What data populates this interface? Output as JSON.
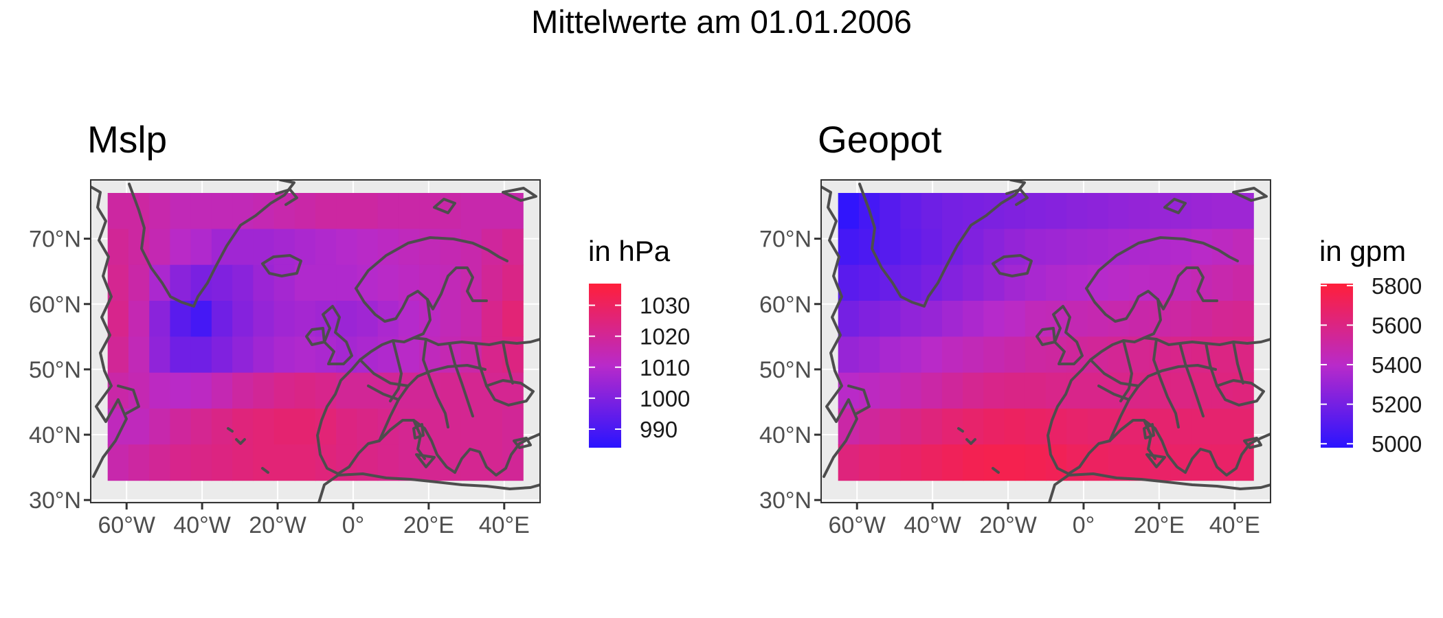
{
  "title": "Mittelwerte am 01.01.2006",
  "colors": {
    "low": "#2a14ff",
    "mid": "#b82aca",
    "high": "#ff1f3a",
    "panel_bg": "#ebebeb",
    "gridline": "#ffffff",
    "coastline": "#4d4d4d",
    "axis_text": "#4d4d4d"
  },
  "panels": [
    {
      "title": "Mslp",
      "legend_title": "in hPa",
      "legend_range": [
        984,
        1037
      ],
      "legend_ticks": [
        1030,
        1020,
        1010,
        1000,
        990
      ],
      "x_ticks": [
        "60°W",
        "40°W",
        "20°W",
        "0°",
        "20°E",
        "40°E"
      ],
      "y_ticks": [
        "70°N",
        "60°N",
        "50°N",
        "40°N",
        "30°N"
      ],
      "grid": {
        "lon_start": -65,
        "lon_step": 5.5,
        "ncols": 20,
        "lat_start": 77,
        "lat_step": 5.5,
        "nrows": 8,
        "values": [
          [
            1018,
            1018,
            1016,
            1014,
            1014,
            1014,
            1014,
            1015,
            1016,
            1017,
            1018,
            1018,
            1018,
            1017,
            1017,
            1017,
            1017,
            1016,
            1016,
            1016
          ],
          [
            1020,
            1018,
            1015,
            1011,
            1009,
            1006,
            1006,
            1006,
            1007,
            1008,
            1009,
            1010,
            1011,
            1012,
            1013,
            1014,
            1015,
            1016,
            1019,
            1021
          ],
          [
            1021,
            1017,
            1008,
            1002,
            999,
            1000,
            1002,
            1005,
            1007,
            1009,
            1009,
            1009,
            1010,
            1011,
            1012,
            1013,
            1014,
            1016,
            1020,
            1023
          ],
          [
            1022,
            1015,
            1002,
            993,
            989,
            997,
            1001,
            1004,
            1006,
            1007,
            1006,
            1005,
            1006,
            1008,
            1010,
            1012,
            1014,
            1016,
            1022,
            1026
          ],
          [
            1020,
            1014,
            1003,
            997,
            997,
            1000,
            1003,
            1006,
            1008,
            1009,
            1008,
            1007,
            1008,
            1009,
            1011,
            1013,
            1015,
            1017,
            1022,
            1024
          ],
          [
            1017,
            1015,
            1012,
            1011,
            1012,
            1015,
            1018,
            1020,
            1022,
            1023,
            1022,
            1020,
            1020,
            1020,
            1020,
            1020,
            1021,
            1021,
            1021,
            1021
          ],
          [
            1013,
            1013,
            1016,
            1019,
            1021,
            1023,
            1025,
            1026,
            1027,
            1027,
            1026,
            1024,
            1023,
            1022,
            1021,
            1021,
            1021,
            1021,
            1021,
            1020
          ],
          [
            1016,
            1018,
            1020,
            1022,
            1023,
            1024,
            1025,
            1026,
            1026,
            1026,
            1025,
            1024,
            1023,
            1022,
            1021,
            1021,
            1021,
            1021,
            1021,
            1020
          ]
        ]
      }
    },
    {
      "title": "Geopot",
      "legend_title": "in gpm",
      "legend_range": [
        4980,
        5810
      ],
      "legend_ticks": [
        5800,
        5600,
        5400,
        5200,
        5000
      ],
      "x_ticks": [
        "60°W",
        "40°W",
        "20°W",
        "0°",
        "20°E",
        "40°E"
      ],
      "y_ticks": [
        "70°N",
        "60°N",
        "50°N",
        "40°N",
        "30°N"
      ],
      "grid": {
        "lon_start": -65,
        "lon_step": 5.5,
        "ncols": 20,
        "lat_start": 77,
        "lat_step": 5.5,
        "nrows": 8,
        "values": [
          [
            5000,
            5060,
            5110,
            5150,
            5180,
            5200,
            5210,
            5220,
            5230,
            5240,
            5250,
            5260,
            5270,
            5280,
            5290,
            5300,
            5300,
            5310,
            5320,
            5320
          ],
          [
            5060,
            5080,
            5110,
            5140,
            5170,
            5200,
            5230,
            5260,
            5290,
            5310,
            5320,
            5330,
            5340,
            5350,
            5360,
            5370,
            5380,
            5400,
            5420,
            5440
          ],
          [
            5120,
            5140,
            5160,
            5180,
            5210,
            5240,
            5270,
            5300,
            5330,
            5350,
            5370,
            5380,
            5390,
            5400,
            5410,
            5420,
            5440,
            5460,
            5480,
            5500
          ],
          [
            5200,
            5230,
            5250,
            5280,
            5300,
            5330,
            5360,
            5390,
            5410,
            5440,
            5450,
            5460,
            5470,
            5480,
            5490,
            5500,
            5510,
            5530,
            5550,
            5560
          ],
          [
            5300,
            5320,
            5350,
            5370,
            5400,
            5430,
            5450,
            5470,
            5490,
            5510,
            5520,
            5530,
            5540,
            5550,
            5560,
            5570,
            5580,
            5590,
            5600,
            5600
          ],
          [
            5400,
            5420,
            5440,
            5470,
            5500,
            5530,
            5560,
            5580,
            5590,
            5590,
            5580,
            5580,
            5580,
            5580,
            5590,
            5600,
            5600,
            5610,
            5610,
            5620
          ],
          [
            5500,
            5530,
            5560,
            5590,
            5620,
            5650,
            5670,
            5690,
            5700,
            5690,
            5680,
            5670,
            5660,
            5660,
            5660,
            5660,
            5660,
            5660,
            5660,
            5660
          ],
          [
            5620,
            5640,
            5660,
            5680,
            5700,
            5720,
            5740,
            5750,
            5750,
            5740,
            5730,
            5710,
            5700,
            5690,
            5690,
            5680,
            5680,
            5680,
            5680,
            5680
          ]
        ]
      }
    }
  ]
}
